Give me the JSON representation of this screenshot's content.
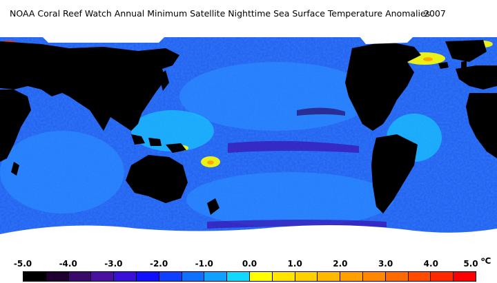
{
  "title": {
    "main": "NOAA Coral Reef Watch Annual Minimum Satellite Nighttime Sea Surface Temperature Anomalies",
    "year": "2007"
  },
  "legend": {
    "unit_degree": "o",
    "unit_letter": "C",
    "tick_labels": [
      "-5.0",
      "-4.0",
      "-3.0",
      "-2.0",
      "-1.0",
      "0.0",
      "1.0",
      "2.0",
      "3.0",
      "4.0",
      "5.0"
    ],
    "tick_values": [
      -5,
      -4,
      -3,
      -2,
      -1,
      0,
      1,
      2,
      3,
      4,
      5
    ],
    "colors": [
      "#000000",
      "#200030",
      "#3a0a6a",
      "#4a10a0",
      "#3a10d8",
      "#1010ff",
      "#1040ff",
      "#1070ff",
      "#10a0ff",
      "#10d8ff",
      "#ffff00",
      "#ffe400",
      "#ffd000",
      "#ffb800",
      "#ffa000",
      "#ff8800",
      "#ff6a00",
      "#ff4c00",
      "#ff2a00",
      "#ff0000"
    ]
  },
  "map_colors": {
    "ocean_base": "#1f5cf0",
    "ocean_light": "#2a8cff",
    "ocean_cyan": "#18c8ff",
    "ocean_purple": "#3a10b0",
    "ocean_dark_purple": "#2a0a6a",
    "land": "#000000",
    "ice": "#ffffff",
    "warm_yellow": "#ffff00",
    "warm_orange": "#ffa000",
    "hot_red": "#ff2a00"
  }
}
